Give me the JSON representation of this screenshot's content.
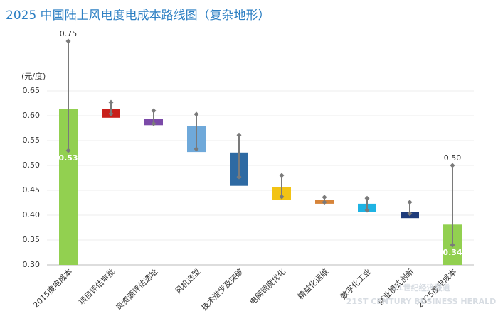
{
  "chart_data": {
    "type": "range-bar",
    "title": "2025 中国陆上风电度电成本路线图（复杂地形）",
    "y_unit": "(元/度)",
    "categories": [
      "2015度电成本",
      "项目评估审批",
      "风资源评估选址",
      "风机选型",
      "技术进步及突破",
      "电网调度优化",
      "精益化运维",
      "数字化工业",
      "商业模式创新",
      "2025度电成本"
    ],
    "colors": [
      "#92d050",
      "#c8201b",
      "#7b4aa8",
      "#6fa9da",
      "#2e6aa3",
      "#f2c314",
      "#d6843a",
      "#1fb3e3",
      "#1f3c7a",
      "#92d050"
    ],
    "bars": {
      "low": [
        0.3,
        0.596,
        0.581,
        0.527,
        0.459,
        0.43,
        0.423,
        0.406,
        0.394,
        0.3
      ],
      "high": [
        0.614,
        0.613,
        0.594,
        0.58,
        0.526,
        0.457,
        0.43,
        0.423,
        0.406,
        0.381
      ]
    },
    "whiskers": {
      "low": [
        0.53,
        0.604,
        0.584,
        0.533,
        0.477,
        0.437,
        0.426,
        0.41,
        0.403,
        0.34
      ],
      "high": [
        0.75,
        0.627,
        0.61,
        0.603,
        0.561,
        0.48,
        0.436,
        0.434,
        0.426,
        0.5
      ],
      "low_labels": [
        "0.53",
        null,
        null,
        null,
        null,
        null,
        null,
        null,
        null,
        "0.34"
      ],
      "high_labels": [
        "0.75",
        null,
        null,
        null,
        null,
        null,
        null,
        null,
        null,
        "0.50"
      ]
    },
    "whisker_color": "#7a7a7a",
    "ylim": [
      0.3,
      0.65
    ],
    "yticks": [
      {
        "value": 0.3,
        "label": "0.30"
      },
      {
        "value": 0.35,
        "label": "0.35"
      },
      {
        "value": 0.4,
        "label": "0.40"
      },
      {
        "value": 0.45,
        "label": "0.45"
      },
      {
        "value": 0.5,
        "label": "0.50"
      },
      {
        "value": 0.55,
        "label": "0.55"
      },
      {
        "value": 0.6,
        "label": "0.60"
      },
      {
        "value": 0.65,
        "label": "0.65"
      }
    ],
    "grid": true,
    "watermark": "21世纪经济报道",
    "watermark_sub": "21ST CENTURY BUSINESS HERALD"
  }
}
